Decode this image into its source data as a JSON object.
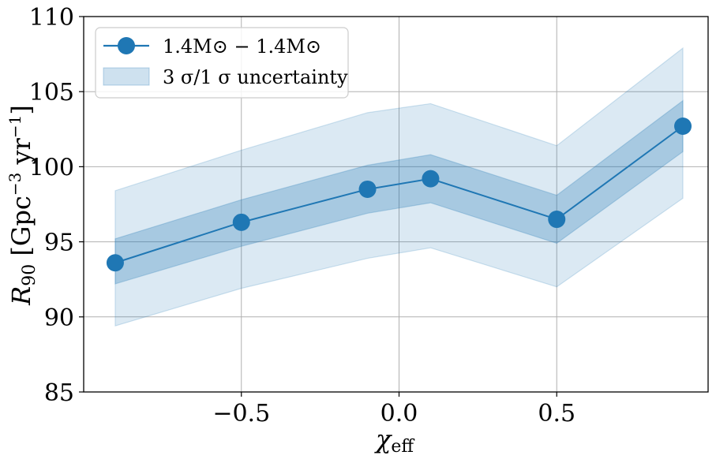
{
  "chart_data": {
    "type": "line",
    "xlabel": {
      "symbol": "χ",
      "subscript": "eff"
    },
    "ylabel": {
      "symbol": "R",
      "subscript": "90",
      "unit_open": " [Gpc",
      "unit_exp1": "−3",
      "unit_mid": " yr",
      "unit_exp2": "−1",
      "unit_close": "]"
    },
    "xlim": [
      -1.0,
      0.98
    ],
    "ylim": [
      85,
      110
    ],
    "x_ticks": [
      -0.5,
      0.0,
      0.5
    ],
    "x_tick_labels": [
      "−0.5",
      "0.0",
      "0.5"
    ],
    "y_ticks": [
      85,
      90,
      95,
      100,
      105,
      110
    ],
    "y_tick_labels": [
      "85",
      "90",
      "95",
      "100",
      "105",
      "110"
    ],
    "grid": true,
    "legend_position": "top-left",
    "series": [
      {
        "name": "1.4M⊙ − 1.4M⊙",
        "color": "#1f77b4",
        "x": [
          -0.9,
          -0.5,
          -0.1,
          0.1,
          0.5,
          0.9
        ],
        "y": [
          93.6,
          96.3,
          98.5,
          99.2,
          96.5,
          102.7
        ],
        "band_1sigma_low": [
          92.2,
          94.7,
          96.9,
          97.6,
          94.9,
          101.0
        ],
        "band_1sigma_high": [
          95.2,
          97.8,
          100.1,
          100.8,
          98.1,
          104.4
        ],
        "band_3sigma_low": [
          89.4,
          91.9,
          93.9,
          94.6,
          92.0,
          97.9
        ],
        "band_3sigma_high": [
          98.4,
          101.1,
          103.6,
          104.2,
          101.4,
          107.9
        ]
      }
    ],
    "legend": [
      {
        "label_text": "1.4M⊙ − 1.4M⊙",
        "kind": "line-marker"
      },
      {
        "label_text": "3 σ/1 σ uncertainty",
        "kind": "band"
      }
    ]
  }
}
